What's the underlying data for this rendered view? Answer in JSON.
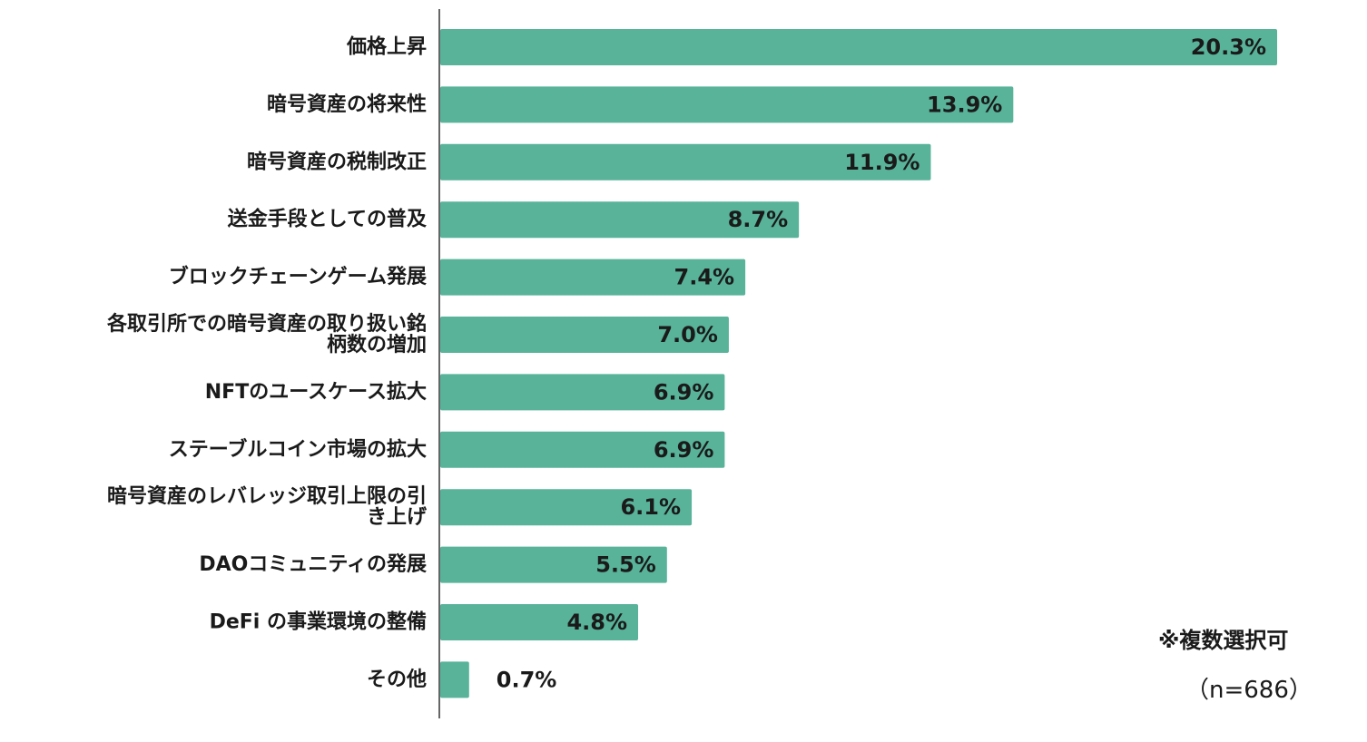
{
  "chart_data": {
    "type": "bar",
    "orientation": "horizontal",
    "categories": [
      "価格上昇",
      "暗号資産の将来性",
      "暗号資産の税制改正",
      "送金手段としての普及",
      "ブロックチェーンゲーム発展",
      "各取引所での暗号資産の取り扱い銘柄数の増加",
      "NFTのユースケース拡大",
      "ステーブルコイン市場の拡大",
      "暗号資産のレバレッジ取引上限の引き上げ",
      "DAOコミュニティの発展",
      "DeFi の事業環境の整備",
      "その他"
    ],
    "category_lines": [
      [
        "価格上昇"
      ],
      [
        "暗号資産の将来性"
      ],
      [
        "暗号資産の税制改正"
      ],
      [
        "送金手段としての普及"
      ],
      [
        "ブロックチェーンゲーム発展"
      ],
      [
        "各取引所での暗号資産の取り扱い銘",
        "柄数の増加"
      ],
      [
        "NFTのユースケース拡大"
      ],
      [
        "ステーブルコイン市場の拡大"
      ],
      [
        "暗号資産のレバレッジ取引上限の引",
        "き上げ"
      ],
      [
        "DAOコミュニティの発展"
      ],
      [
        "DeFi の事業環境の整備"
      ],
      [
        "その他"
      ]
    ],
    "values": [
      20.3,
      13.9,
      11.9,
      8.7,
      7.4,
      7.0,
      6.9,
      6.9,
      6.1,
      5.5,
      4.8,
      0.7
    ],
    "value_labels": [
      "20.3%",
      "13.9%",
      "11.9%",
      "8.7%",
      "7.4%",
      "7.0%",
      "6.9%",
      "6.9%",
      "6.1%",
      "5.5%",
      "4.8%",
      "0.7%"
    ],
    "unit": "%",
    "xlim": [
      0,
      20.3
    ],
    "grid": false,
    "bar_color": "#58b399",
    "title": "",
    "xlabel": "",
    "ylabel": ""
  },
  "notes": {
    "multi_select": "※複数選択可",
    "sample_size": "（n=686）"
  }
}
